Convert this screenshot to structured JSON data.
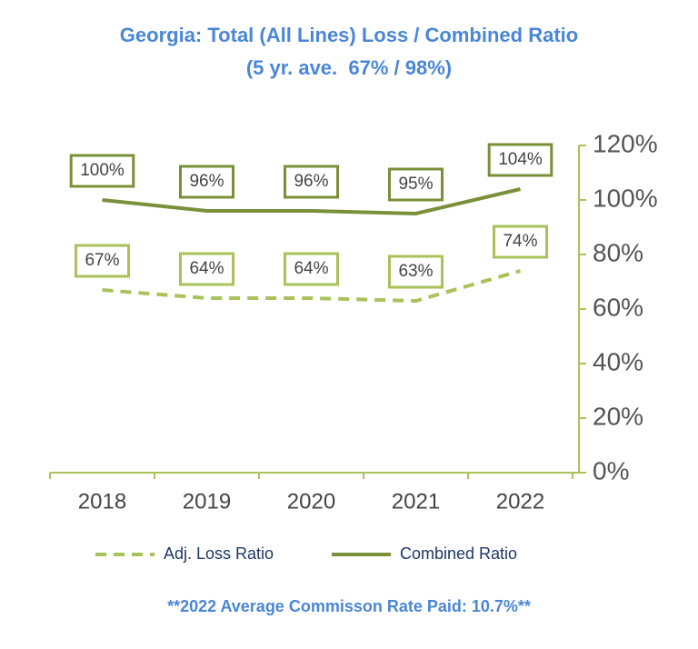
{
  "chart_data": {
    "type": "line",
    "title": "Georgia: Total (All Lines) Loss / Combined Ratio",
    "subtitle": "(5 yr. ave.  67% / 98%)",
    "categories": [
      "2018",
      "2019",
      "2020",
      "2021",
      "2022"
    ],
    "series": [
      {
        "name": "Adj. Loss Ratio",
        "color": "#a9c25a",
        "line_style": "dashed",
        "values": [
          67,
          64,
          64,
          63,
          74
        ],
        "value_labels": [
          "67%",
          "64%",
          "64%",
          "63%",
          "74%"
        ]
      },
      {
        "name": "Combined Ratio",
        "color": "#7a9038",
        "line_style": "solid",
        "values": [
          100,
          96,
          96,
          95,
          104
        ],
        "value_labels": [
          "100%",
          "96%",
          "96%",
          "95%",
          "104%"
        ]
      }
    ],
    "ylim": [
      0,
      120
    ],
    "yticks": [
      {
        "value": 0,
        "label": "0%"
      },
      {
        "value": 20,
        "label": "20%"
      },
      {
        "value": 40,
        "label": "40%"
      },
      {
        "value": 60,
        "label": "60%"
      },
      {
        "value": 80,
        "label": "80%"
      },
      {
        "value": 100,
        "label": "100%"
      },
      {
        "value": 120,
        "label": "120%"
      }
    ],
    "y_axis_side": "right",
    "axis_color": "#a9c25a",
    "footnote": "**2022 Average Commisson Rate Paid: 10.7%**"
  }
}
